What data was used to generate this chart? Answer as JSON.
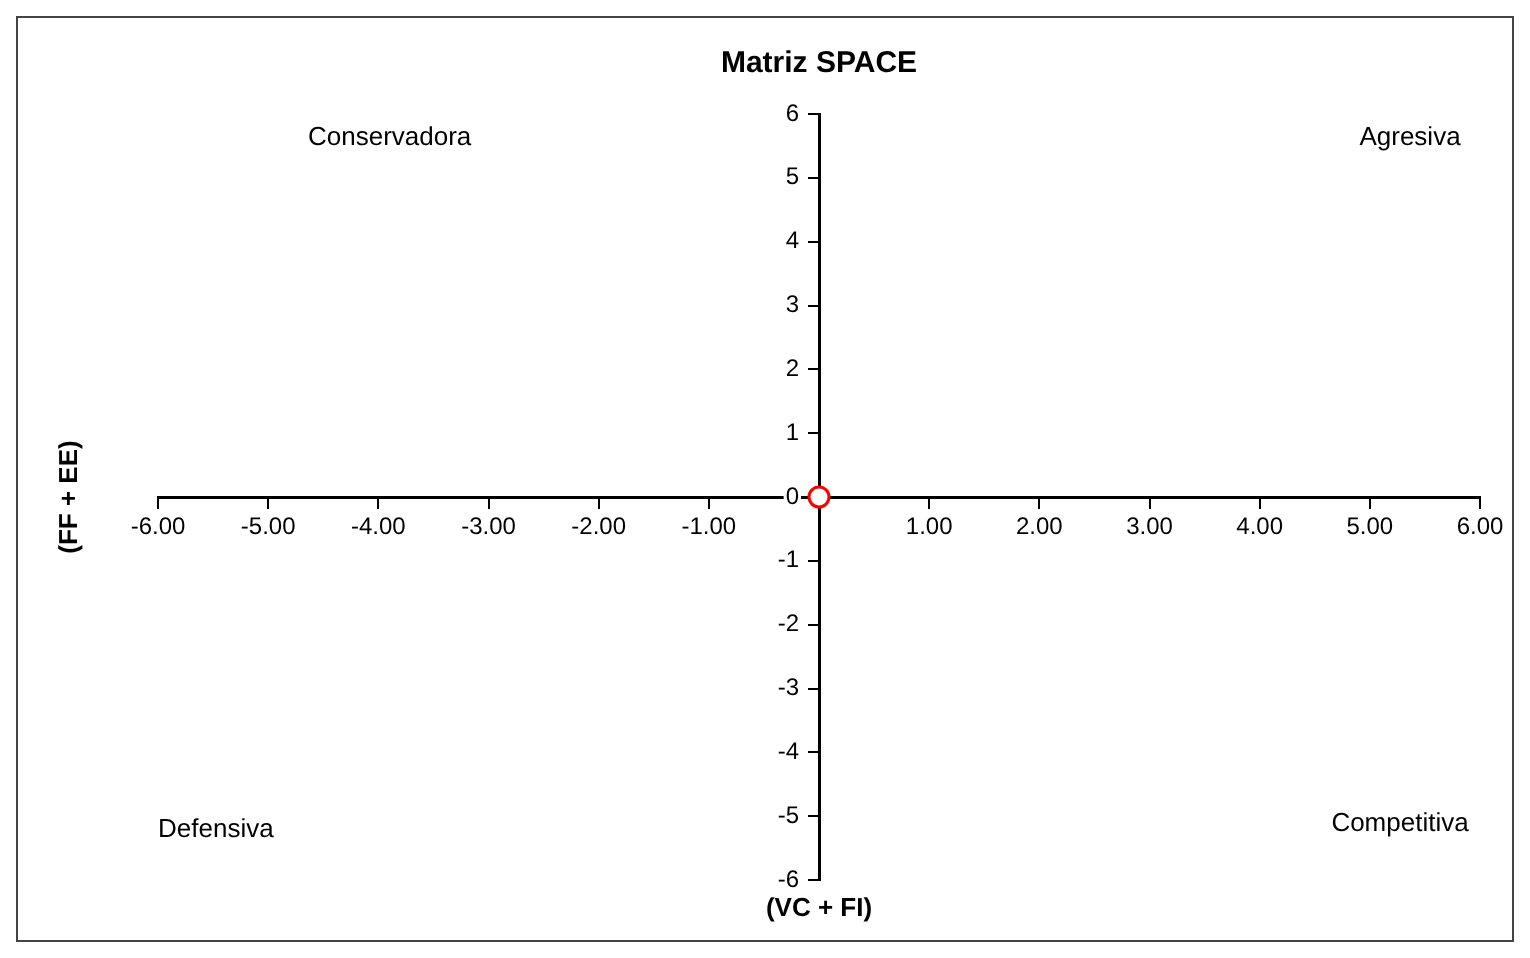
{
  "chart_data": {
    "type": "scatter",
    "title": "Matriz SPACE",
    "xlabel": "(VC + FI)",
    "ylabel": "(FF + EE)",
    "annotations": [
      "Conservadora",
      "Agresiva",
      "Defensiva",
      "Competitiva"
    ],
    "series": [
      {
        "color": "#ff0000",
        "x": [
          0
        ],
        "values": [
          0
        ]
      }
    ],
    "xlim": [
      -6,
      6
    ],
    "ylim": [
      -6,
      6
    ],
    "xticks": [
      {
        "value": -6,
        "label": "-6.00"
      },
      {
        "value": -5,
        "label": "-5.00"
      },
      {
        "value": -4,
        "label": "-4.00"
      },
      {
        "value": -3,
        "label": "-3.00"
      },
      {
        "value": -2,
        "label": "-2.00"
      },
      {
        "value": -1,
        "label": "-1.00"
      },
      {
        "value": 0,
        "label": null
      },
      {
        "value": 1,
        "label": "1.00"
      },
      {
        "value": 2,
        "label": "2.00"
      },
      {
        "value": 3,
        "label": "3.00"
      },
      {
        "value": 4,
        "label": "4.00"
      },
      {
        "value": 5,
        "label": "5.00"
      },
      {
        "value": 6,
        "label": "6.00"
      }
    ],
    "yticks": [
      -6,
      -5,
      -4,
      -3,
      -2,
      -1,
      0,
      1,
      2,
      3,
      4,
      5,
      6
    ],
    "grid": false,
    "legend": false,
    "marker": "circle"
  }
}
